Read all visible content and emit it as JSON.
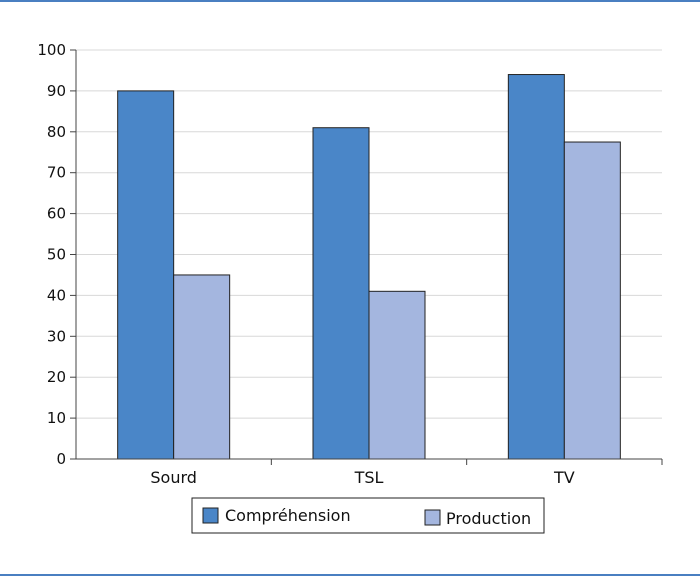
{
  "colors": {
    "frame": "#4a7fc1",
    "grid": "#d8d8d8",
    "axis": "#444444"
  },
  "chart_data": {
    "type": "bar",
    "categories": [
      "Sourd",
      "TSL",
      "TV"
    ],
    "series": [
      {
        "name": "Compréhension",
        "values": [
          90,
          81,
          94
        ],
        "color": "#4a86c8"
      },
      {
        "name": "Production",
        "values": [
          45,
          41,
          77.5
        ],
        "color": "#a4b6df"
      }
    ],
    "ylim": [
      0,
      100
    ],
    "yticks": [
      0,
      10,
      20,
      30,
      40,
      50,
      60,
      70,
      80,
      90,
      100
    ],
    "grid": true,
    "legend_position": "bottom"
  }
}
